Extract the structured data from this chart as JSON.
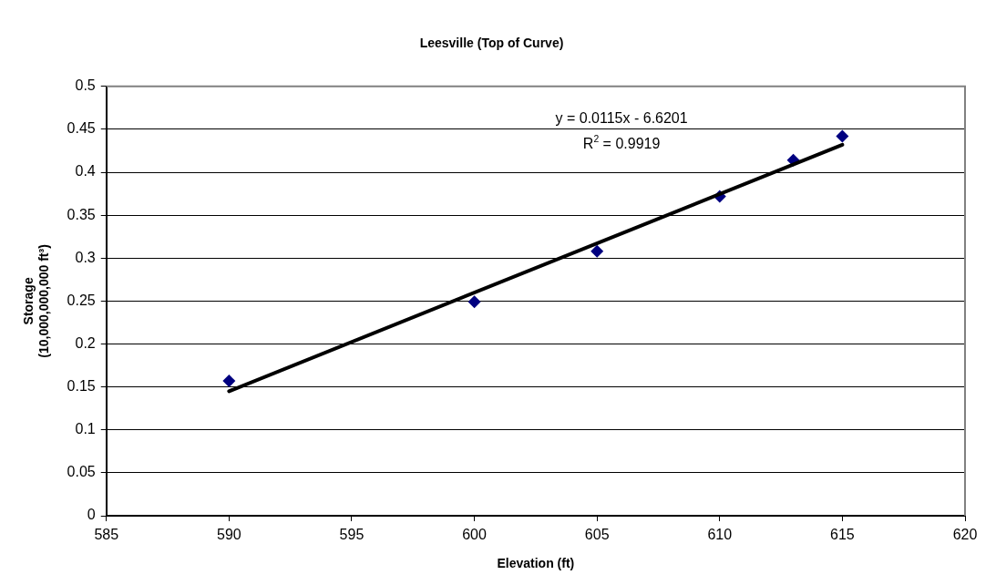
{
  "chart_data": {
    "type": "scatter",
    "title": "Leesville (Top of Curve)",
    "xlabel": "Elevation (ft)",
    "ylabel": "Storage\n(10,000,000,000 ft³)",
    "annotations": [
      "y = 0.0115x - 6.6201",
      "R$^{2}$ = 0.9919"
    ],
    "x": [
      590,
      600,
      605,
      610,
      613,
      615
    ],
    "series": [
      {
        "color": "#000080",
        "marker": "diamond",
        "values": [
          0.157,
          0.249,
          0.308,
          0.372,
          0.414,
          0.442
        ]
      },
      {
        "type": "line",
        "color": "#000000",
        "line_style": "solid",
        "marker": "none",
        "x": [
          590,
          615
        ],
        "values": [
          0.145,
          0.432
        ]
      }
    ],
    "xlim": [
      585,
      620
    ],
    "xticks": [
      585,
      590,
      595,
      600,
      605,
      610,
      615,
      620
    ],
    "ylim": [
      0,
      0.5
    ],
    "yticks": [
      0,
      0.05,
      0.1,
      0.15,
      0.2,
      0.25,
      0.3,
      0.35,
      0.4,
      0.45,
      0.5
    ],
    "grid": "y",
    "legend": false
  }
}
